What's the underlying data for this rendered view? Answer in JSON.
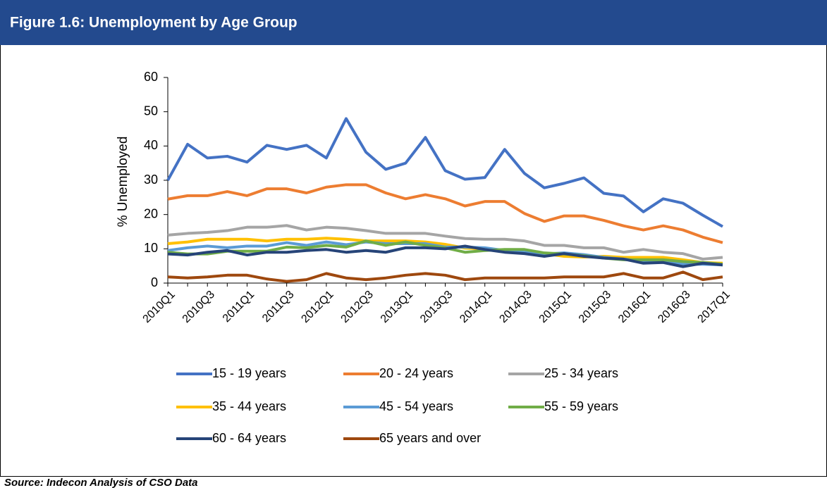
{
  "chart_data": {
    "type": "line",
    "title": "Figure 1.6: Unemployment by Age Group",
    "source": "Source: Indecon Analysis of CSO Data",
    "y_label": "% Unemployed",
    "categories": [
      "2010Q1",
      null,
      "2010Q3",
      null,
      "2011Q1",
      null,
      "2011Q3",
      null,
      "2012Q1",
      null,
      "2012Q3",
      null,
      "2013Q1",
      null,
      "2013Q3",
      null,
      "2014Q1",
      null,
      "2014Q3",
      null,
      "2015Q1",
      null,
      "2015Q3",
      null,
      "2016Q1",
      null,
      "2016Q3",
      null,
      "2017Q1"
    ],
    "ylim": [
      0,
      60
    ],
    "yticks": [
      0,
      10,
      20,
      30,
      40,
      50,
      60
    ],
    "grid": false,
    "legend": "bottom",
    "series": [
      {
        "name": "15 - 19 years",
        "color": "#4472c4",
        "values": [
          30,
          40.5,
          36.5,
          37,
          35.3,
          40.2,
          39,
          40.2,
          36.5,
          48,
          38.2,
          33.2,
          35,
          42.5,
          32.8,
          30.3,
          30.8,
          39,
          32,
          27.8,
          29.1,
          30.7,
          26.2,
          25.4,
          20.8,
          24.6,
          23.3,
          19.8,
          16.5
        ]
      },
      {
        "name": "20 - 24 years",
        "color": "#ed7d31",
        "values": [
          24.5,
          25.5,
          25.5,
          26.7,
          25.5,
          27.5,
          27.5,
          26.3,
          28,
          28.7,
          28.7,
          26.3,
          24.6,
          25.8,
          24.6,
          22.5,
          23.8,
          23.8,
          20.3,
          18,
          19.6,
          19.6,
          18.3,
          16.7,
          15.5,
          16.7,
          15.5,
          13.4,
          11.8
        ]
      },
      {
        "name": "25 - 34 years",
        "color": "#a5a5a5",
        "values": [
          14,
          14.5,
          14.8,
          15.3,
          16.3,
          16.3,
          16.8,
          15.5,
          16.3,
          16,
          15.3,
          14.5,
          14.5,
          14.5,
          13.7,
          13,
          12.8,
          12.8,
          12.3,
          11,
          11,
          10.3,
          10.3,
          9,
          9.8,
          9,
          8.6,
          7,
          7.5
        ]
      },
      {
        "name": "35 - 44 years",
        "color": "#ffc000",
        "values": [
          11.5,
          12,
          12.8,
          12.8,
          12.8,
          12.3,
          12.8,
          12.8,
          13.1,
          12.8,
          12.3,
          12.3,
          12.3,
          12,
          11.3,
          10.2,
          10,
          9.5,
          9,
          8.6,
          7.8,
          7.6,
          7.8,
          7.5,
          7.5,
          7.5,
          6.8,
          6,
          5.8
        ]
      },
      {
        "name": "45 - 54 years",
        "color": "#5b9bd5",
        "values": [
          9.5,
          10.3,
          10.8,
          10.3,
          10.8,
          10.8,
          11.8,
          11,
          12,
          11.2,
          12,
          11.5,
          11.5,
          11.5,
          10.5,
          10.5,
          10.3,
          9.5,
          9,
          8.5,
          8.8,
          8.3,
          7.5,
          7,
          6.5,
          6.3,
          5.5,
          5.5,
          5.3
        ]
      },
      {
        "name": "55 - 59 years",
        "color": "#70ad47",
        "values": [
          9,
          8.5,
          8.5,
          9.3,
          9.3,
          9.3,
          10.5,
          10.3,
          11,
          10.5,
          12.3,
          11,
          12,
          11,
          10.3,
          9,
          9.5,
          9.8,
          9.8,
          8.8,
          8.5,
          8,
          7.3,
          6.8,
          6.8,
          6.8,
          6.3,
          6,
          5.5
        ]
      },
      {
        "name": "60 - 64 years",
        "color": "#264478",
        "values": [
          8.5,
          8.2,
          9,
          9.5,
          8.2,
          9,
          9,
          9.5,
          9.8,
          9,
          9.5,
          9,
          10.3,
          10.3,
          10,
          10.8,
          9.8,
          9,
          8.6,
          7.8,
          8.6,
          7.8,
          7.3,
          7,
          5.8,
          6,
          4.8,
          5.8,
          5.3
        ]
      },
      {
        "name": "65 years and over",
        "color": "#9e480e",
        "values": [
          1.8,
          1.5,
          1.8,
          2.3,
          2.3,
          1.2,
          0.5,
          1,
          2.8,
          1.5,
          1,
          1.5,
          2.3,
          2.8,
          2.3,
          1,
          1.5,
          1.5,
          1.5,
          1.5,
          1.8,
          1.8,
          1.8,
          2.8,
          1.5,
          1.5,
          3.2,
          1,
          1.8
        ]
      }
    ]
  }
}
